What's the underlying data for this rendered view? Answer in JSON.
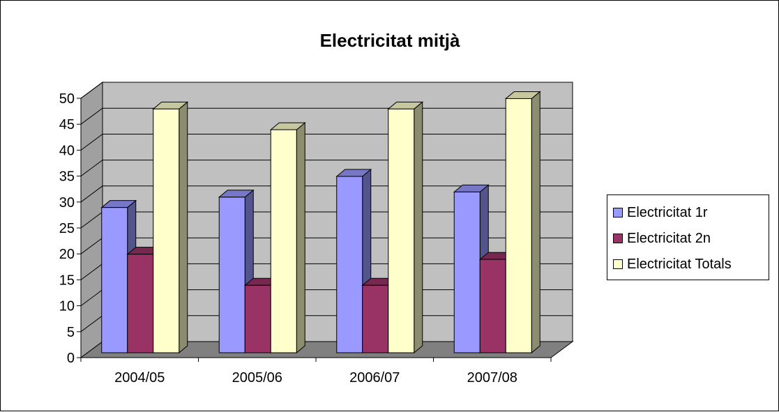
{
  "chart_data": {
    "type": "bar",
    "title": "Electricitat mitjà",
    "xlabel": "",
    "ylabel": "",
    "categories": [
      "2004/05",
      "2005/06",
      "2006/07",
      "2007/08"
    ],
    "series": [
      {
        "name": "Electricitat 1r",
        "values": [
          28,
          30,
          34,
          31
        ],
        "color": "#9999FF"
      },
      {
        "name": "Electricitat 2n",
        "values": [
          19,
          13,
          13,
          18
        ],
        "color": "#993366"
      },
      {
        "name": "Electricitat Totals",
        "values": [
          47,
          43,
          47,
          49
        ],
        "color": "#FFFFCC"
      }
    ],
    "ylim": [
      0,
      50
    ],
    "yticks": [
      "0",
      "5",
      "10",
      "15",
      "20",
      "25",
      "30",
      "35",
      "40",
      "45",
      "50"
    ],
    "grid": true,
    "legend_position": "right",
    "style": "3d-clustered-column",
    "wall_color": "#C0C0C0",
    "floor_color": "#808080"
  }
}
